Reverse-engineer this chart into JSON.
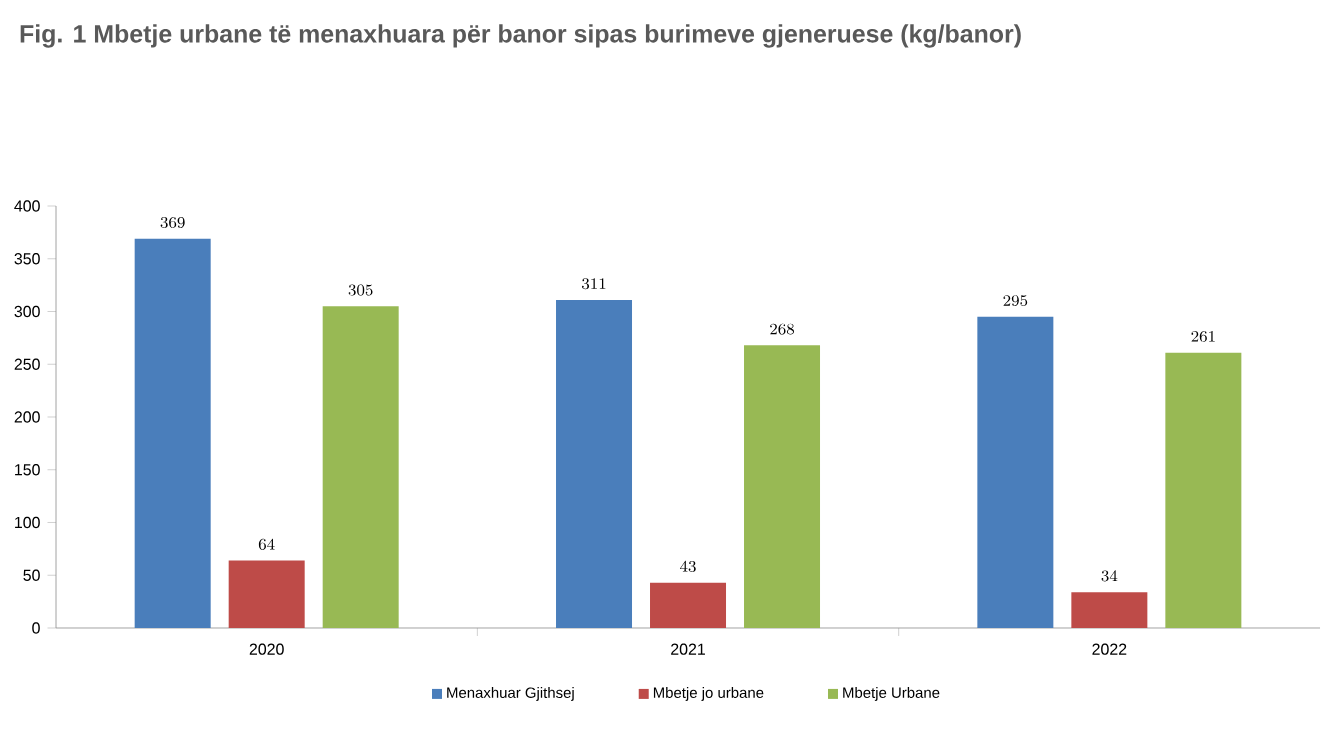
{
  "chart_data": {
    "type": "bar",
    "title": "Fig. 1 Mbetje urbane të menaxhuara për banor sipas burimeve gjeneruese (kg/banor)",
    "categories": [
      "2020",
      "2021",
      "2022"
    ],
    "series": [
      {
        "name": "Menaxhuar Gjithsej",
        "color": "#4a7ebb",
        "values": [
          369,
          311,
          295
        ]
      },
      {
        "name": "Mbetje jo urbane",
        "color": "#be4b48",
        "values": [
          64,
          43,
          34
        ]
      },
      {
        "name": "Mbetje Urbane",
        "color": "#98b954",
        "values": [
          305,
          268,
          261
        ]
      }
    ],
    "ylim": [
      0,
      400
    ],
    "yticks": [
      0,
      50,
      100,
      150,
      200,
      250,
      300,
      350,
      400
    ],
    "data_labels": true,
    "legend": "bottom",
    "grid": false
  }
}
